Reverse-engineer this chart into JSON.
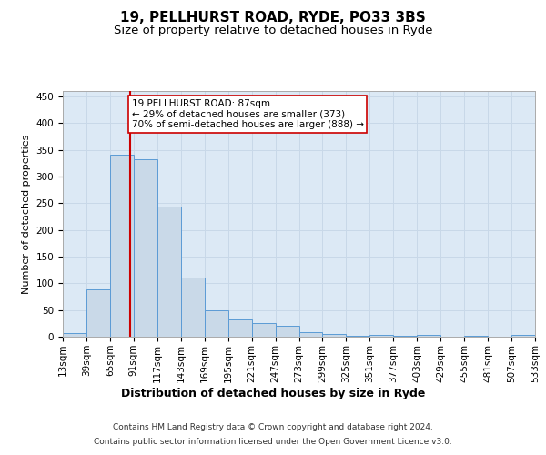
{
  "title": "19, PELLHURST ROAD, RYDE, PO33 3BS",
  "subtitle": "Size of property relative to detached houses in Ryde",
  "xlabel": "Distribution of detached houses by size in Ryde",
  "ylabel": "Number of detached properties",
  "bar_values": [
    7,
    88,
    340,
    333,
    244,
    110,
    50,
    32,
    26,
    20,
    9,
    5,
    1,
    3,
    1,
    3,
    0,
    1,
    0,
    3
  ],
  "bin_edges": [
    13,
    39,
    65,
    91,
    117,
    143,
    169,
    195,
    221,
    247,
    273,
    299,
    325,
    351,
    377,
    403,
    429,
    455,
    481,
    507,
    533
  ],
  "tick_labels": [
    "13sqm",
    "39sqm",
    "65sqm",
    "91sqm",
    "117sqm",
    "143sqm",
    "169sqm",
    "195sqm",
    "221sqm",
    "247sqm",
    "273sqm",
    "299sqm",
    "325sqm",
    "351sqm",
    "377sqm",
    "403sqm",
    "429sqm",
    "455sqm",
    "481sqm",
    "507sqm",
    "533sqm"
  ],
  "bar_color": "#c9d9e8",
  "bar_edge_color": "#5b9bd5",
  "grid_color": "#c8d8e8",
  "background_color": "#dce9f5",
  "red_line_x": 87,
  "red_line_color": "#cc0000",
  "annotation_text": "19 PELLHURST ROAD: 87sqm\n← 29% of detached houses are smaller (373)\n70% of semi-detached houses are larger (888) →",
  "annotation_box_color": "white",
  "annotation_box_edge": "#cc0000",
  "footer_line1": "Contains HM Land Registry data © Crown copyright and database right 2024.",
  "footer_line2": "Contains public sector information licensed under the Open Government Licence v3.0.",
  "ylim": [
    0,
    460
  ],
  "yticks": [
    0,
    50,
    100,
    150,
    200,
    250,
    300,
    350,
    400,
    450
  ],
  "title_fontsize": 11,
  "subtitle_fontsize": 9.5,
  "xlabel_fontsize": 9,
  "ylabel_fontsize": 8,
  "tick_fontsize": 7.5,
  "footer_fontsize": 6.5,
  "annotation_fontsize": 7.5
}
